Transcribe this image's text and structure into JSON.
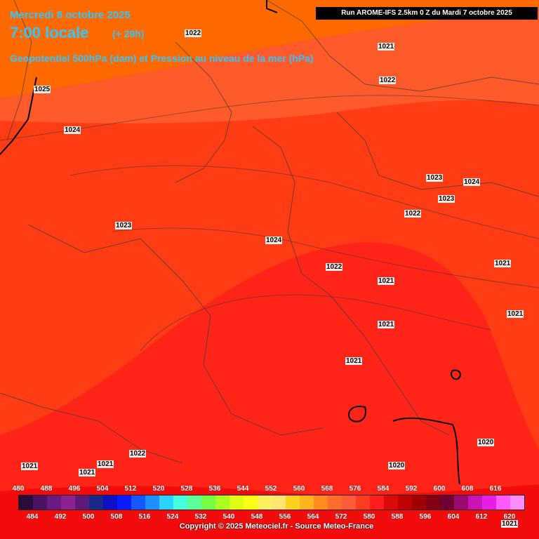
{
  "header": {
    "date": "Mercredi 8 octobre 2025",
    "time": "7:00 locale",
    "lead": "(+ 29h)",
    "subtitle": "Geopotentiel 500hPa (dam) et Pression au niveau de la mer (hPa)",
    "run": "Run AROME-IFS 2.5km 0 Z du Mardi 7 octobre 2025"
  },
  "isobars": [
    "1022",
    "1021",
    "1022",
    "1025",
    "1024",
    "1023",
    "1023",
    "1022",
    "1024",
    "1023",
    "1024",
    "1022",
    "1021",
    "1021",
    "1021",
    "1021",
    "1021",
    "1020",
    "1021",
    "1021",
    "1022",
    "1021",
    "1021",
    "1020"
  ],
  "legend": {
    "top_labels": [
      "480",
      "488",
      "496",
      "504",
      "512",
      "520",
      "528",
      "536",
      "544",
      "552",
      "560",
      "568",
      "576",
      "584",
      "592",
      "600",
      "608",
      "616"
    ],
    "bottom_labels": [
      "484",
      "492",
      "500",
      "508",
      "516",
      "524",
      "532",
      "540",
      "548",
      "556",
      "564",
      "572",
      "580",
      "588",
      "596",
      "604",
      "612",
      "620"
    ],
    "colors": [
      "#2a0c3c",
      "#4b1462",
      "#6a1a85",
      "#8b2290",
      "#5a1a7a",
      "#1a2a8a",
      "#1010c8",
      "#0a1cff",
      "#1458ff",
      "#1e90ff",
      "#2ad4ff",
      "#46ffe0",
      "#5aff96",
      "#74ff46",
      "#aaff1e",
      "#dcff14",
      "#ffff14",
      "#fff060",
      "#ffe66e",
      "#ffd21e",
      "#ffb41e",
      "#ff8c1e",
      "#ff6e28",
      "#ff5a3c",
      "#ff3c1e",
      "#ff1e1e",
      "#dc0a0a",
      "#be0000",
      "#a00000",
      "#820014",
      "#6e0032",
      "#9b0a6e",
      "#c814b4",
      "#e61ee6",
      "#ff5aff",
      "#ff8cff"
    ]
  },
  "copyright": "Copyright © 2025 Meteociel.fr - Source Meteo-France",
  "colors": {
    "zone568": "#ff6a00",
    "zone572": "#ff5a2a",
    "zone576": "#ff3c14",
    "zone580": "#ff2418",
    "zone584": "#f20c0c"
  }
}
